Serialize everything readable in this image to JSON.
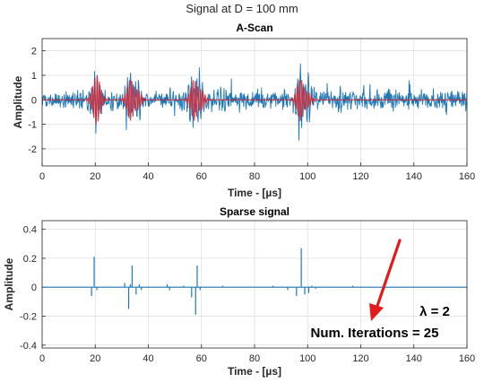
{
  "figure_title": "Signal at D = 100 mm",
  "chart_data": [
    {
      "type": "line",
      "title": "A-Scan",
      "xlabel": "Time - [µs]",
      "ylabel": "Amplitude",
      "xlim": [
        0,
        160
      ],
      "ylim": [
        -2.7,
        2.5
      ],
      "xticks": [
        0,
        20,
        40,
        60,
        80,
        100,
        120,
        140,
        160
      ],
      "yticks": [
        2,
        1,
        0,
        -1,
        -2
      ],
      "grid": true,
      "series": [
        {
          "color": "#1f77b4",
          "kind": "noisy-signal",
          "noise_level": 0.32,
          "echoes": [
            {
              "t": 18.5,
              "amp": 0.7
            },
            {
              "t": 20.5,
              "amp": 1.1
            },
            {
              "t": 33,
              "amp": 1.1
            },
            {
              "t": 36,
              "amp": 1.0
            },
            {
              "t": 49,
              "amp": 0.6
            },
            {
              "t": 56,
              "amp": 1.0
            },
            {
              "t": 59,
              "amp": 1.3
            },
            {
              "t": 67,
              "amp": 0.6
            },
            {
              "t": 97,
              "amp": 1.6
            },
            {
              "t": 100,
              "amp": 1.2
            },
            {
              "t": 112,
              "amp": 0.5
            }
          ]
        },
        {
          "color": "#d1202e",
          "kind": "reconstructed-echoes",
          "echoes": [
            {
              "t": 20.5,
              "amp": 1.0
            },
            {
              "t": 33.5,
              "amp": 0.95
            },
            {
              "t": 35.5,
              "amp": 0.55
            },
            {
              "t": 57.5,
              "amp": 0.95
            },
            {
              "t": 59.5,
              "amp": 0.55
            },
            {
              "t": 97.5,
              "amp": 0.95
            },
            {
              "t": 99.5,
              "amp": 0.45
            }
          ]
        }
      ]
    },
    {
      "type": "line",
      "title": "Sparse signal",
      "xlabel": "Time - [µs]",
      "ylabel": "Amplitude",
      "xlim": [
        0,
        160
      ],
      "ylim": [
        -0.42,
        0.46
      ],
      "xticks": [
        0,
        20,
        40,
        60,
        80,
        100,
        120,
        140,
        160
      ],
      "yticks": [
        0.4,
        0.2,
        0,
        -0.2,
        -0.4
      ],
      "grid": true,
      "series": [
        {
          "color": "#1f77b4",
          "spikes": [
            {
              "t": 18.6,
              "v": -0.06
            },
            {
              "t": 19.6,
              "v": 0.21
            },
            {
              "t": 20.6,
              "v": -0.02
            },
            {
              "t": 31.1,
              "v": 0.03
            },
            {
              "t": 32.6,
              "v": -0.15
            },
            {
              "t": 33.2,
              "v": 0.02
            },
            {
              "t": 33.9,
              "v": 0.15
            },
            {
              "t": 35.4,
              "v": -0.05
            },
            {
              "t": 36.6,
              "v": 0.02
            },
            {
              "t": 37.4,
              "v": -0.02
            },
            {
              "t": 47.1,
              "v": 0.02
            },
            {
              "t": 48.0,
              "v": -0.02
            },
            {
              "t": 53.3,
              "v": 0.01
            },
            {
              "t": 56.3,
              "v": -0.07
            },
            {
              "t": 57.8,
              "v": -0.19
            },
            {
              "t": 58.4,
              "v": 0.15
            },
            {
              "t": 59.5,
              "v": -0.02
            },
            {
              "t": 68.0,
              "v": 0.01
            },
            {
              "t": 87.0,
              "v": 0.01
            },
            {
              "t": 92.5,
              "v": -0.02
            },
            {
              "t": 95.8,
              "v": -0.06
            },
            {
              "t": 97.6,
              "v": 0.27
            },
            {
              "t": 98.9,
              "v": -0.05
            },
            {
              "t": 100.4,
              "v": -0.04
            },
            {
              "t": 101.6,
              "v": 0.01
            },
            {
              "t": 103.0,
              "v": -0.01
            },
            {
              "t": 117.0,
              "v": 0.01
            }
          ]
        }
      ],
      "annotations": [
        {
          "text": "λ = 2"
        },
        {
          "text": "Num. Iterations = 25"
        }
      ],
      "arrow_color": "#e31a1c"
    }
  ]
}
